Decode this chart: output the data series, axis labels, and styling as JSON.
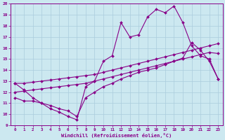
{
  "background_color": "#cce8f0",
  "line_color": "#880088",
  "xlim": [
    -0.5,
    23.5
  ],
  "ylim": [
    9,
    20
  ],
  "xticks": [
    0,
    1,
    2,
    3,
    4,
    5,
    6,
    7,
    8,
    9,
    10,
    11,
    12,
    13,
    14,
    15,
    16,
    17,
    18,
    19,
    20,
    21,
    22,
    23
  ],
  "yticks": [
    9,
    10,
    11,
    12,
    13,
    14,
    15,
    16,
    17,
    18,
    19,
    20
  ],
  "xlabel": "Windchill (Refroidissement éolien,°C)",
  "series": [
    {
      "x": [
        0,
        1,
        2,
        3,
        4,
        5,
        6,
        7,
        8,
        9,
        10,
        11,
        12,
        13,
        14,
        15,
        16,
        17,
        18,
        19,
        20,
        21,
        22,
        23
      ],
      "y": [
        12.8,
        12.2,
        11.5,
        11.0,
        10.5,
        10.2,
        9.8,
        9.5,
        12.5,
        13.0,
        14.8,
        15.3,
        18.3,
        17.0,
        17.2,
        18.8,
        19.5,
        19.2,
        19.8,
        18.3,
        16.2,
        15.3,
        15.0,
        13.2
      ]
    },
    {
      "x": [
        0,
        1,
        2,
        3,
        4,
        5,
        6,
        7,
        8,
        9,
        10,
        11,
        12,
        13,
        14,
        15,
        16,
        17,
        18,
        19,
        20,
        21,
        22,
        23
      ],
      "y": [
        12.8,
        12.8,
        12.9,
        13.0,
        13.1,
        13.2,
        13.3,
        13.4,
        13.5,
        13.6,
        13.8,
        14.0,
        14.2,
        14.4,
        14.6,
        14.8,
        15.0,
        15.2,
        15.4,
        15.6,
        15.8,
        16.0,
        16.2,
        16.4
      ]
    },
    {
      "x": [
        0,
        1,
        2,
        3,
        4,
        5,
        6,
        7,
        8,
        9,
        10,
        11,
        12,
        13,
        14,
        15,
        16,
        17,
        18,
        19,
        20,
        21,
        22,
        23
      ],
      "y": [
        12.0,
        12.1,
        12.2,
        12.3,
        12.4,
        12.5,
        12.6,
        12.7,
        12.8,
        13.0,
        13.2,
        13.4,
        13.6,
        13.8,
        14.0,
        14.2,
        14.4,
        14.6,
        14.8,
        15.0,
        15.2,
        15.4,
        15.6,
        15.5
      ]
    },
    {
      "x": [
        0,
        1,
        2,
        3,
        4,
        5,
        6,
        7,
        8,
        9,
        10,
        11,
        12,
        13,
        14,
        15,
        16,
        17,
        18,
        19,
        20,
        21,
        22,
        23
      ],
      "y": [
        11.5,
        11.2,
        11.2,
        11.0,
        10.8,
        10.5,
        10.3,
        9.8,
        11.5,
        12.0,
        12.5,
        12.8,
        13.2,
        13.5,
        13.8,
        14.0,
        14.2,
        14.5,
        14.8,
        15.1,
        16.5,
        15.8,
        14.8,
        13.2
      ]
    }
  ]
}
